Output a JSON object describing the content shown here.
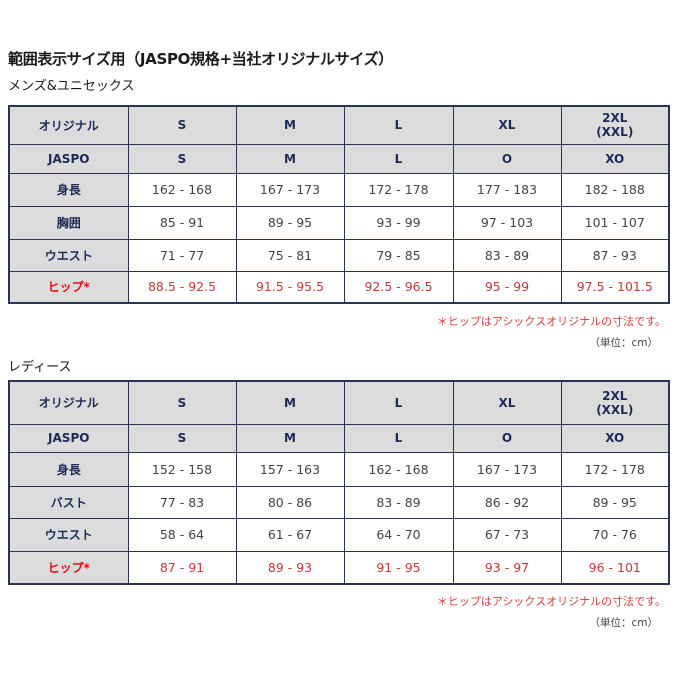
{
  "title": "範囲表示サイズ用（JASPO規格+当社オリジナルサイズ）",
  "mens": {
    "heading": "メンズ&ユニセックス",
    "header": [
      "オリジナル",
      "S",
      "M",
      "L",
      "XL",
      "2XL\n(XXL)"
    ],
    "jaspo": [
      "JASPO",
      "S",
      "M",
      "L",
      "O",
      "XO"
    ],
    "rows": [
      {
        "label": "身長",
        "values": [
          "162 - 168",
          "167 - 173",
          "172 - 178",
          "177 - 183",
          "182 - 188"
        ]
      },
      {
        "label": "胸囲",
        "values": [
          "85 - 91",
          "89 - 95",
          "93 - 99",
          "97 - 103",
          "101 - 107"
        ]
      },
      {
        "label": "ウエスト",
        "values": [
          "71 - 77",
          "75 - 81",
          "79 - 85",
          "83 - 89",
          "87 - 93"
        ]
      },
      {
        "label": "ヒップ*",
        "values": [
          "88.5 - 92.5",
          "91.5 - 95.5",
          "92.5 - 96.5",
          "95 - 99",
          "97.5 - 101.5"
        ],
        "highlight": true
      }
    ],
    "note": "＊ヒップはアシックスオリジナルの寸法です。",
    "unit": "（単位：cm）"
  },
  "ladies": {
    "heading": "レディース",
    "header": [
      "オリジナル",
      "S",
      "M",
      "L",
      "XL",
      "2XL\n(XXL)"
    ],
    "jaspo": [
      "JASPO",
      "S",
      "M",
      "L",
      "O",
      "XO"
    ],
    "rows": [
      {
        "label": "身長",
        "values": [
          "152 - 158",
          "157 - 163",
          "162 - 168",
          "167 - 173",
          "172 - 178"
        ]
      },
      {
        "label": "バスト",
        "values": [
          "77 - 83",
          "80 - 86",
          "83 - 89",
          "86 - 92",
          "89 - 95"
        ]
      },
      {
        "label": "ウエスト",
        "values": [
          "58 - 64",
          "61 - 67",
          "64 - 70",
          "67 - 73",
          "70 - 76"
        ]
      },
      {
        "label": "ヒップ*",
        "values": [
          "87 - 91",
          "89 - 93",
          "91 - 95",
          "93 - 97",
          "96 - 101"
        ],
        "highlight": true
      }
    ],
    "note": "＊ヒップはアシックスオリジナルの寸法です。",
    "unit": "（単位：cm）"
  },
  "colors": {
    "border": "#2b3450",
    "header_bg": "#dcdcdc",
    "highlight": "#e01010"
  }
}
